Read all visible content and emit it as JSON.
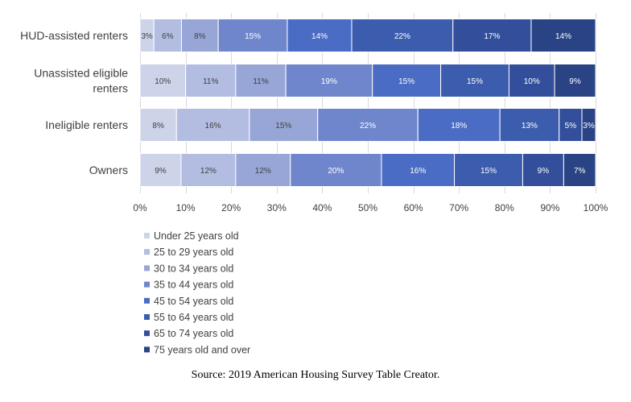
{
  "chart_data": {
    "type": "bar",
    "orientation": "horizontal",
    "stacked": "percent",
    "categories": [
      "HUD-assisted renters",
      "Unassisted eligible renters",
      "Ineligible renters",
      "Owners"
    ],
    "category_lines": [
      [
        "HUD-assisted renters"
      ],
      [
        "Unassisted eligible",
        "renters"
      ],
      [
        "Ineligible renters"
      ],
      [
        "Owners"
      ]
    ],
    "series": [
      {
        "name": "Under 25 years old",
        "color": "#cdd3e9",
        "label_color": "#404040",
        "values": [
          3,
          10,
          8,
          9
        ],
        "labels": [
          "3%",
          "10%",
          "8%",
          "9%"
        ]
      },
      {
        "name": "25 to 29 years old",
        "color": "#b3bde1",
        "label_color": "#404040",
        "values": [
          6,
          11,
          16,
          12
        ],
        "labels": [
          "6%",
          "11%",
          "16%",
          "12%"
        ]
      },
      {
        "name": "30 to 34 years old",
        "color": "#97a6d6",
        "label_color": "#404040",
        "values": [
          8,
          11,
          15,
          12
        ],
        "labels": [
          "8%",
          "11%",
          "15%",
          "12%"
        ]
      },
      {
        "name": "35 to 44 years old",
        "color": "#6f86cc",
        "label_color": "#ffffff",
        "values": [
          15,
          19,
          22,
          20
        ],
        "labels": [
          "15%",
          "19%",
          "22%",
          "20%"
        ]
      },
      {
        "name": "45 to 54 years old",
        "color": "#4a6cc4",
        "label_color": "#ffffff",
        "values": [
          14,
          15,
          18,
          16
        ],
        "labels": [
          "14%",
          "15%",
          "18%",
          "16%"
        ]
      },
      {
        "name": "55 to 64 years old",
        "color": "#3c5cae",
        "label_color": "#ffffff",
        "values": [
          22,
          15,
          13,
          15
        ],
        "labels": [
          "22%",
          "15%",
          "13%",
          "15%"
        ]
      },
      {
        "name": "65 to 74 years old",
        "color": "#334f9b",
        "label_color": "#ffffff",
        "values": [
          17,
          10,
          5,
          9
        ],
        "labels": [
          "17%",
          "10%",
          "5%",
          "9%"
        ]
      },
      {
        "name": "75 years old and over",
        "color": "#2a4385",
        "label_color": "#ffffff",
        "values": [
          14,
          9,
          3,
          7
        ],
        "labels": [
          "14%",
          "9%",
          "3%",
          "7%"
        ]
      }
    ],
    "x_ticks": [
      "0%",
      "10%",
      "20%",
      "30%",
      "40%",
      "50%",
      "60%",
      "70%",
      "80%",
      "90%",
      "100%"
    ],
    "xlim": [
      0,
      100
    ],
    "grid": true,
    "legend_position": "bottom-left",
    "title": "",
    "xlabel": "",
    "ylabel": ""
  },
  "source": "Source: 2019 American Housing Survey Table Creator."
}
